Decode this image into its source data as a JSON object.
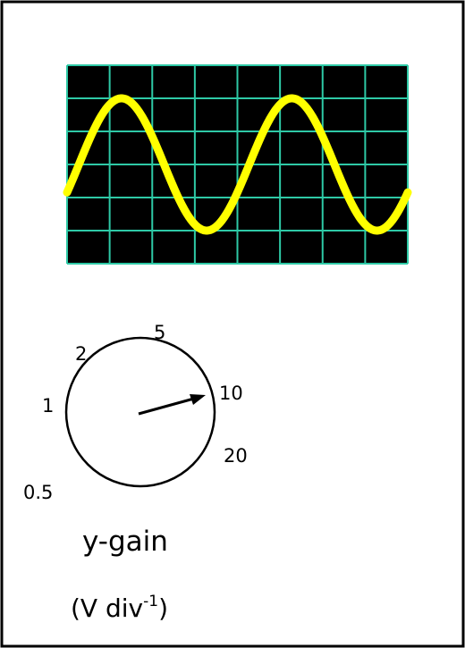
{
  "screen": {
    "background": "#000000",
    "grid_color": "#2ec9a6",
    "trace_color": "#ffff00",
    "grid_cols": 8,
    "grid_rows": 6,
    "trace": {
      "amplitude_divisions": 2,
      "cycles": 2,
      "start_phase_deg": -25
    }
  },
  "dial": {
    "scale_labels": [
      "0.5",
      "1",
      "2",
      "5",
      "10",
      "20"
    ],
    "pointer_at": "10",
    "title": "y-gain",
    "unit_base": "(V div",
    "unit_exp": "-1",
    "unit_close": ")"
  }
}
